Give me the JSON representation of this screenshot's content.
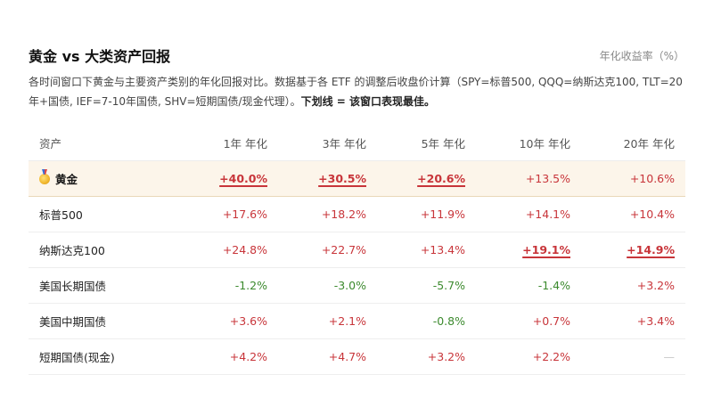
{
  "header": {
    "title": "黄金 vs 大类资产回报",
    "unit": "年化收益率（%）"
  },
  "description": {
    "text": "各时间窗口下黄金与主要资产类别的年化回报对比。数据基于各 ETF 的调整后收盘价计算（SPY=标普500, QQQ=纳斯达克100, TLT=20年+国债, IEF=7-10年国债, SHV=短期国债/现金代理）。",
    "note": "下划线 = 该窗口表现最佳。"
  },
  "table": {
    "headers": [
      "资产",
      "1年 年化",
      "3年 年化",
      "5年 年化",
      "10年 年化",
      "20年 年化"
    ],
    "rows": [
      {
        "name": "黄金",
        "icon": "medal-icon",
        "highlight": true,
        "cells": [
          {
            "value": "+40.0%",
            "sign": "pos",
            "best": true
          },
          {
            "value": "+30.5%",
            "sign": "pos",
            "best": true
          },
          {
            "value": "+20.6%",
            "sign": "pos",
            "best": true
          },
          {
            "value": "+13.5%",
            "sign": "pos",
            "best": false
          },
          {
            "value": "+10.6%",
            "sign": "pos",
            "best": false
          }
        ]
      },
      {
        "name": "标普500",
        "highlight": false,
        "cells": [
          {
            "value": "+17.6%",
            "sign": "pos",
            "best": false
          },
          {
            "value": "+18.2%",
            "sign": "pos",
            "best": false
          },
          {
            "value": "+11.9%",
            "sign": "pos",
            "best": false
          },
          {
            "value": "+14.1%",
            "sign": "pos",
            "best": false
          },
          {
            "value": "+10.4%",
            "sign": "pos",
            "best": false
          }
        ]
      },
      {
        "name": "纳斯达克100",
        "highlight": false,
        "cells": [
          {
            "value": "+24.8%",
            "sign": "pos",
            "best": false
          },
          {
            "value": "+22.7%",
            "sign": "pos",
            "best": false
          },
          {
            "value": "+13.4%",
            "sign": "pos",
            "best": false
          },
          {
            "value": "+19.1%",
            "sign": "pos",
            "best": true
          },
          {
            "value": "+14.9%",
            "sign": "pos",
            "best": true
          }
        ]
      },
      {
        "name": "美国长期国债",
        "highlight": false,
        "cells": [
          {
            "value": "-1.2%",
            "sign": "neg",
            "best": false
          },
          {
            "value": "-3.0%",
            "sign": "neg",
            "best": false
          },
          {
            "value": "-5.7%",
            "sign": "neg",
            "best": false
          },
          {
            "value": "-1.4%",
            "sign": "neg",
            "best": false
          },
          {
            "value": "+3.2%",
            "sign": "pos",
            "best": false
          }
        ]
      },
      {
        "name": "美国中期国债",
        "highlight": false,
        "cells": [
          {
            "value": "+3.6%",
            "sign": "pos",
            "best": false
          },
          {
            "value": "+2.1%",
            "sign": "pos",
            "best": false
          },
          {
            "value": "-0.8%",
            "sign": "neg",
            "best": false
          },
          {
            "value": "+0.7%",
            "sign": "pos",
            "best": false
          },
          {
            "value": "+3.4%",
            "sign": "pos",
            "best": false
          }
        ]
      },
      {
        "name": "短期国债(现金)",
        "highlight": false,
        "cells": [
          {
            "value": "+4.2%",
            "sign": "pos",
            "best": false
          },
          {
            "value": "+4.7%",
            "sign": "pos",
            "best": false
          },
          {
            "value": "+3.2%",
            "sign": "pos",
            "best": false
          },
          {
            "value": "+2.2%",
            "sign": "pos",
            "best": false
          },
          {
            "value": "—",
            "sign": "na",
            "best": false
          }
        ]
      }
    ]
  },
  "colors": {
    "positive": "#c8353a",
    "negative": "#3c8a2e",
    "highlight_bg": "#fcf5ea"
  }
}
